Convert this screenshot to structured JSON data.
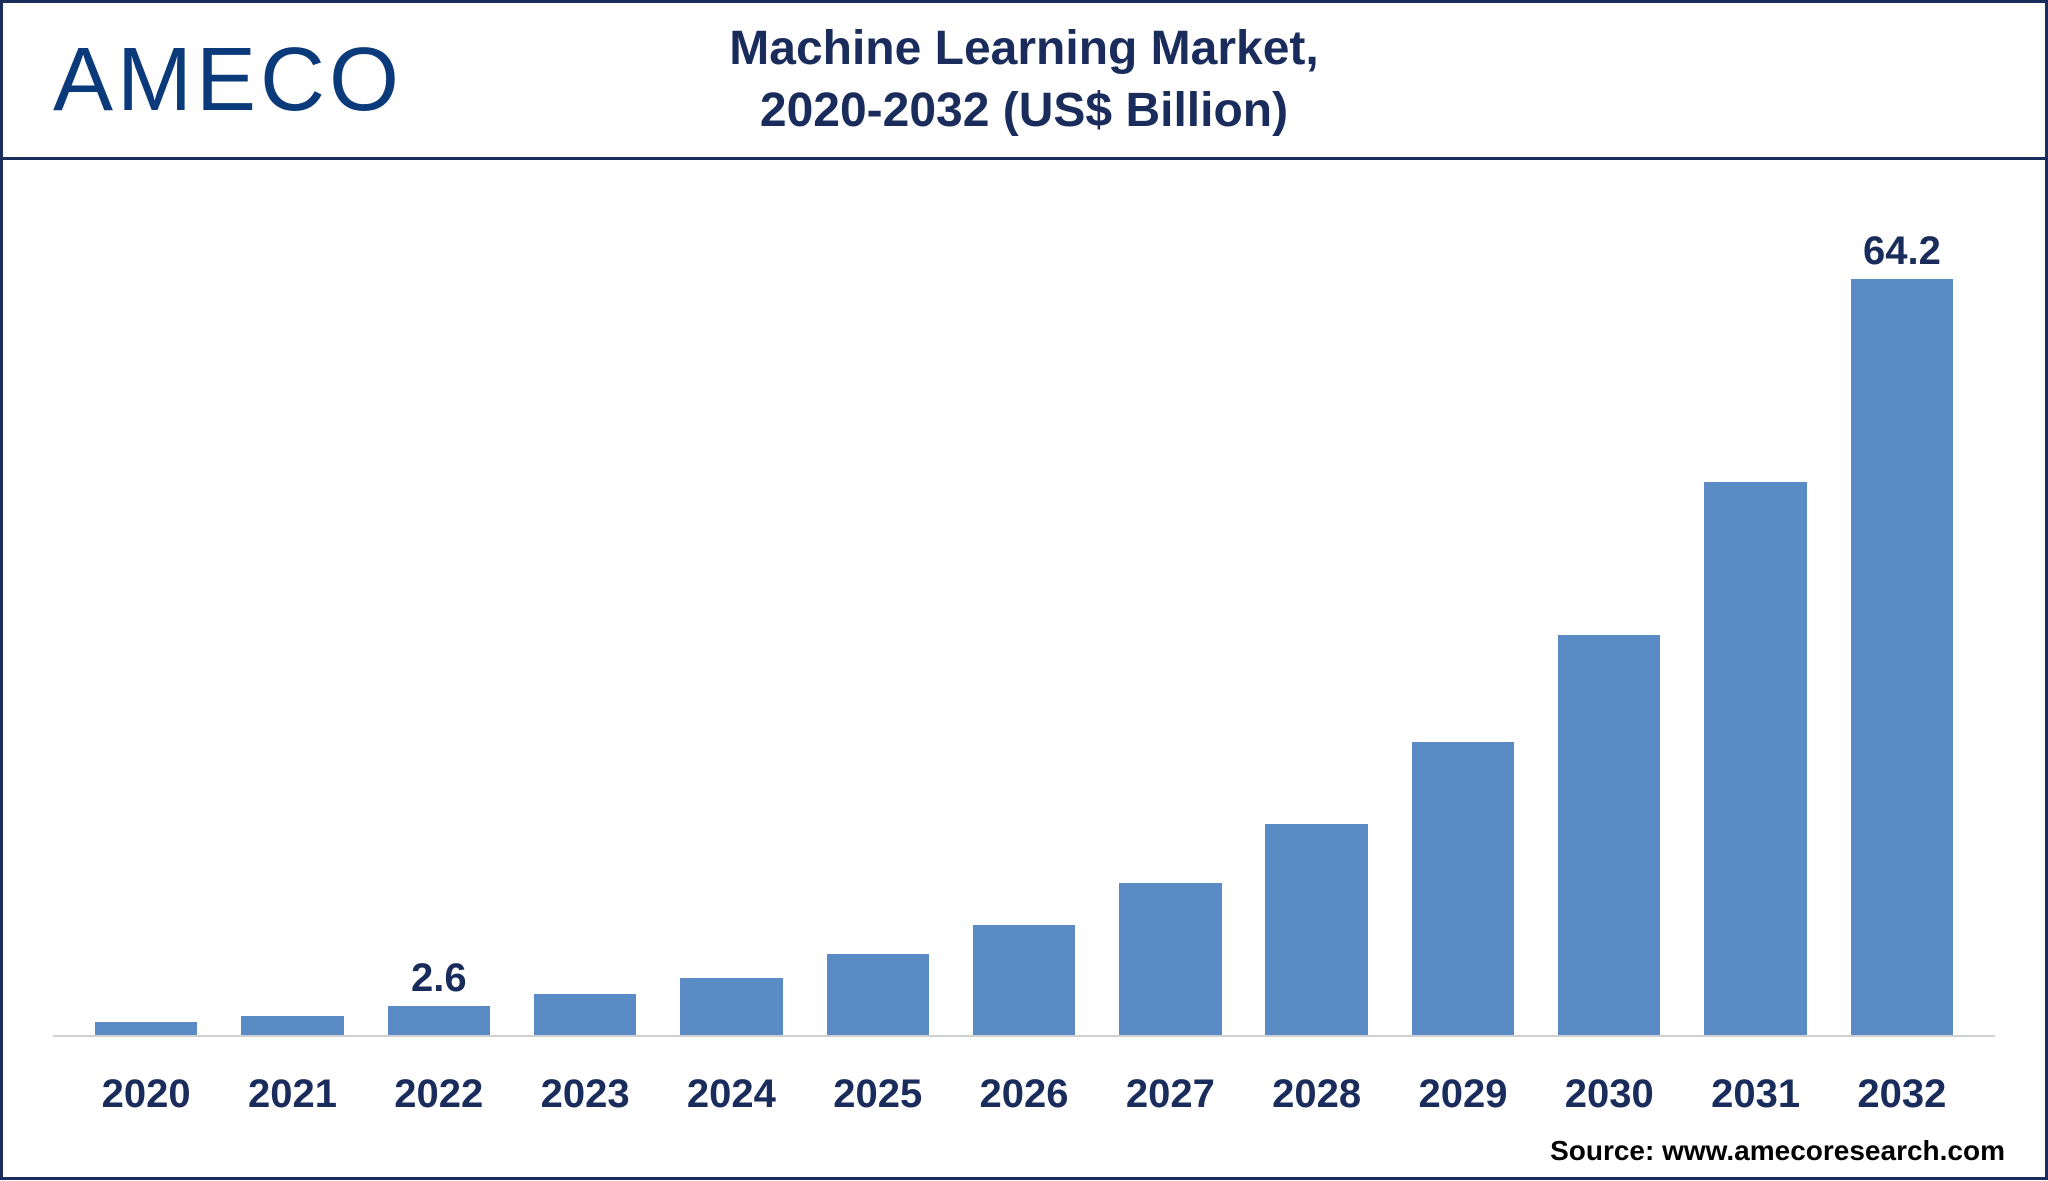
{
  "logo": {
    "text": "AMECO",
    "color": "#0a3a7a"
  },
  "title": {
    "line1": "Machine Learning Market,",
    "line2": "2020-2032 (US$ Billion)",
    "color": "#1a2c5b",
    "fontsize": 48
  },
  "chart": {
    "type": "bar",
    "categories": [
      "2020",
      "2021",
      "2022",
      "2023",
      "2024",
      "2025",
      "2026",
      "2027",
      "2028",
      "2029",
      "2030",
      "2031",
      "2032"
    ],
    "values": [
      1.3,
      1.8,
      2.6,
      3.6,
      5.0,
      7.0,
      9.5,
      13.0,
      18.0,
      25.0,
      34.0,
      47.0,
      64.2
    ],
    "value_labels": [
      "",
      "",
      "2.6",
      "",
      "",
      "",
      "",
      "",
      "",
      "",
      "",
      "",
      "64.2"
    ],
    "bar_color": "#5b8bc5",
    "ylim_max": 70,
    "background_color": "#ffffff",
    "border_color": "#1a2c5b",
    "baseline_color": "#d0d0d0",
    "axis_label_color": "#1a2c5b",
    "axis_label_fontsize": 40,
    "value_label_fontsize": 40,
    "bar_width_pct": 70
  },
  "source": {
    "text": "Source: www.amecoresearch.com",
    "color": "#000000",
    "fontsize": 28
  }
}
